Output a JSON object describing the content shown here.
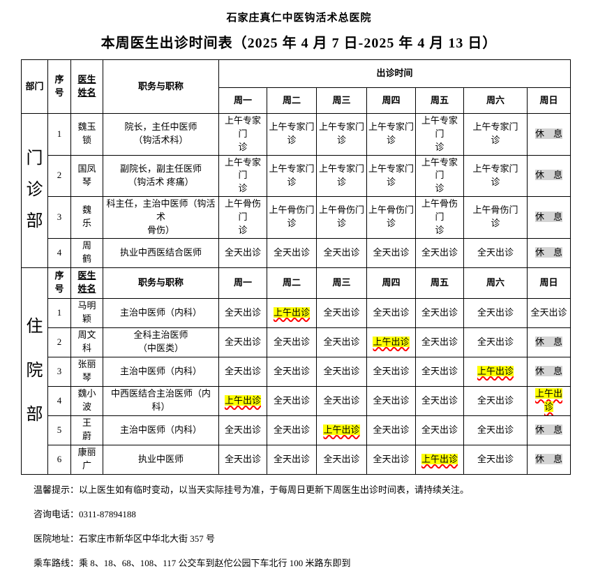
{
  "page": {
    "title": "石家庄真仁中医钩活术总医院",
    "subtitle": "本周医生出诊时间表（2025 年 4 月 7 日-2025 年 4 月 13 日）"
  },
  "colors": {
    "highlight_yellow": "#ffff00",
    "highlight_gray": "#d4d4d4",
    "wavy_underline_red": "#ff0000",
    "table_border": "#000000"
  },
  "table": {
    "header": {
      "dept": "部门",
      "no": "序\n号",
      "doctor": "医生\n姓名",
      "job": "职务与职称",
      "visit_time": "出诊时间",
      "days": [
        "周一",
        "周二",
        "周三",
        "周四",
        "周五",
        "周六",
        "周日"
      ]
    },
    "sections": [
      {
        "dept": "门诊部",
        "repeat_header": false,
        "rows": [
          {
            "no": "1",
            "name": "魏玉\n锁",
            "job": "院长，主任中医师\n（钩活术科）",
            "cells": [
              {
                "t": "上午专家门\n诊"
              },
              {
                "t": "上午专家门\n诊"
              },
              {
                "t": "上午专家门\n诊"
              },
              {
                "t": "上午专家门\n诊"
              },
              {
                "t": "上午专家门\n诊"
              },
              {
                "t": "上午专家门\n诊"
              },
              {
                "t": "休　息",
                "h": "gray"
              }
            ]
          },
          {
            "no": "2",
            "name": "国凤\n琴",
            "job": "副院长，副主任医师\n（钩活术 疼痛）",
            "cells": [
              {
                "t": "上午专家门\n诊"
              },
              {
                "t": "上午专家门\n诊"
              },
              {
                "t": "上午专家门\n诊"
              },
              {
                "t": "上午专家门\n诊"
              },
              {
                "t": "上午专家门\n诊"
              },
              {
                "t": "上午专家门\n诊"
              },
              {
                "t": "休　息",
                "h": "gray"
              }
            ]
          },
          {
            "no": "3",
            "name": "魏\n乐",
            "job": "科主任，主治中医师（钩活术\n骨伤）",
            "cells": [
              {
                "t": "上午骨伤门\n诊"
              },
              {
                "t": "上午骨伤门\n诊"
              },
              {
                "t": "上午骨伤门\n诊"
              },
              {
                "t": "上午骨伤门\n诊"
              },
              {
                "t": "上午骨伤门\n诊"
              },
              {
                "t": "上午骨伤门\n诊"
              },
              {
                "t": "休　息",
                "h": "gray"
              }
            ]
          },
          {
            "no": "4",
            "name": "周\n鹤",
            "job": "执业中西医结合医师",
            "cells": [
              {
                "t": "全天出诊"
              },
              {
                "t": "全天出诊"
              },
              {
                "t": "全天出诊"
              },
              {
                "t": "全天出诊"
              },
              {
                "t": "全天出诊"
              },
              {
                "t": "全天出诊"
              },
              {
                "t": "休　息",
                "h": "gray"
              }
            ]
          }
        ]
      },
      {
        "dept": "住院部",
        "repeat_header": true,
        "rows": [
          {
            "no": "1",
            "name": "马明\n颖",
            "job": "主治中医师（内科）",
            "cells": [
              {
                "t": "全天出诊"
              },
              {
                "t": "上午出诊",
                "h": "yellow"
              },
              {
                "t": "全天出诊"
              },
              {
                "t": "全天出诊"
              },
              {
                "t": "全天出诊"
              },
              {
                "t": "全天出诊"
              },
              {
                "t": "全天出诊"
              }
            ]
          },
          {
            "no": "2",
            "name": "周文\n科",
            "job": "全科主治医师\n（中医类）",
            "cells": [
              {
                "t": "全天出诊"
              },
              {
                "t": "全天出诊"
              },
              {
                "t": "全天出诊"
              },
              {
                "t": "上午出诊",
                "h": "yellow"
              },
              {
                "t": "全天出诊"
              },
              {
                "t": "全天出诊"
              },
              {
                "t": "休　息",
                "h": "gray"
              }
            ]
          },
          {
            "no": "3",
            "name": "张丽\n琴",
            "job": "主治中医师（内科）",
            "cells": [
              {
                "t": "全天出诊"
              },
              {
                "t": "全天出诊"
              },
              {
                "t": "全天出诊"
              },
              {
                "t": "全天出诊"
              },
              {
                "t": "全天出诊"
              },
              {
                "t": "上午出诊",
                "h": "yellow"
              },
              {
                "t": "休　息",
                "h": "gray"
              }
            ]
          },
          {
            "no": "4",
            "name": "魏小\n波",
            "job": "中西医结合主治医师（内科）",
            "cells": [
              {
                "t": "上午出诊",
                "h": "yellow"
              },
              {
                "t": "全天出诊"
              },
              {
                "t": "全天出诊"
              },
              {
                "t": "全天出诊"
              },
              {
                "t": "全天出诊"
              },
              {
                "t": "全天出诊"
              },
              {
                "t": "上午出\n诊",
                "h": "yellow"
              }
            ]
          },
          {
            "no": "5",
            "name": "王\n蔚",
            "job": "主治中医师（内科）",
            "cells": [
              {
                "t": "全天出诊"
              },
              {
                "t": "全天出诊"
              },
              {
                "t": "上午出诊",
                "h": "yellow"
              },
              {
                "t": "全天出诊"
              },
              {
                "t": "全天出诊"
              },
              {
                "t": "全天出诊"
              },
              {
                "t": "休　息",
                "h": "gray"
              }
            ]
          },
          {
            "no": "6",
            "name": "康丽\n广",
            "job": "执业中医师",
            "cells": [
              {
                "t": "全天出诊"
              },
              {
                "t": "全天出诊"
              },
              {
                "t": "全天出诊"
              },
              {
                "t": "全天出诊"
              },
              {
                "t": "上午出诊",
                "h": "yellow"
              },
              {
                "t": "全天出诊"
              },
              {
                "t": "休　息",
                "h": "gray"
              }
            ]
          }
        ]
      }
    ]
  },
  "notes": [
    "温馨提示：以上医生如有临时变动，以当天实际挂号为准，于每周日更新下周医生出诊时间表，请持续关注。",
    "咨询电话：0311-87894188",
    "医院地址：石家庄市新华区中华北大街 357 号",
    "乘车路线：乘 8、18、68、108、117 公交车到赵佗公园下车北行 100 米路东即到"
  ]
}
